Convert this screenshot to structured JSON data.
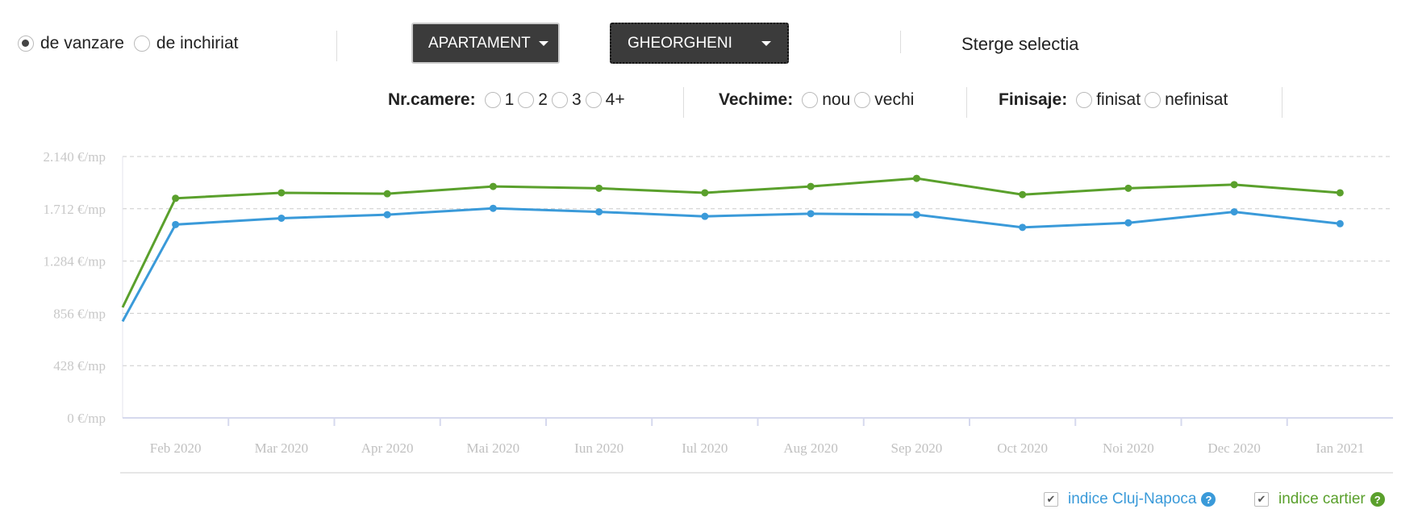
{
  "filters": {
    "transaction": [
      {
        "label": "de vanzare",
        "selected": true
      },
      {
        "label": "de inchiriat",
        "selected": false
      }
    ],
    "property_type": "APARTAMENT",
    "neighborhood": "GHEORGHENI",
    "clear_label": "Sterge selectia",
    "rooms": {
      "label": "Nr.camere:",
      "options": [
        "1",
        "2",
        "3",
        "4+"
      ]
    },
    "age": {
      "label": "Vechime:",
      "options": [
        "nou",
        "vechi"
      ]
    },
    "finish": {
      "label": "Finisaje:",
      "options": [
        "finisat",
        "nefinisat"
      ]
    }
  },
  "legend": {
    "items": [
      {
        "label": "indice Cluj-Napoca",
        "checked": true,
        "color": "#3a9ad9"
      },
      {
        "label": "indice cartier",
        "checked": true,
        "color": "#5aa02c"
      }
    ]
  },
  "chart_data": {
    "type": "line",
    "categories": [
      "",
      "Feb 2020",
      "Mar 2020",
      "Apr 2020",
      "Mai 2020",
      "Iun 2020",
      "Iul 2020",
      "Aug 2020",
      "Sep 2020",
      "Oct 2020",
      "Noi 2020",
      "Dec 2020",
      "Ian 2021"
    ],
    "ylim": [
      0,
      2140
    ],
    "yticks": [
      "0 €/mp",
      "428 €/mp",
      "856 €/mp",
      "1.284 €/mp",
      "1.712 €/mp",
      "2.140 €/mp"
    ],
    "ytick_values": [
      0,
      428,
      856,
      1284,
      1712,
      2140
    ],
    "grid": true,
    "legend_position": "bottom-right",
    "series": [
      {
        "name": "indice Cluj-Napoca",
        "color": "#3a9ad9",
        "values": [
          790,
          1583,
          1635,
          1664,
          1716,
          1687,
          1650,
          1672,
          1664,
          1560,
          1597,
          1687,
          1590
        ]
      },
      {
        "name": "indice cartier",
        "color": "#5aa02c",
        "values": [
          905,
          1798,
          1843,
          1835,
          1895,
          1880,
          1843,
          1895,
          1961,
          1828,
          1880,
          1910,
          1843
        ]
      }
    ]
  }
}
